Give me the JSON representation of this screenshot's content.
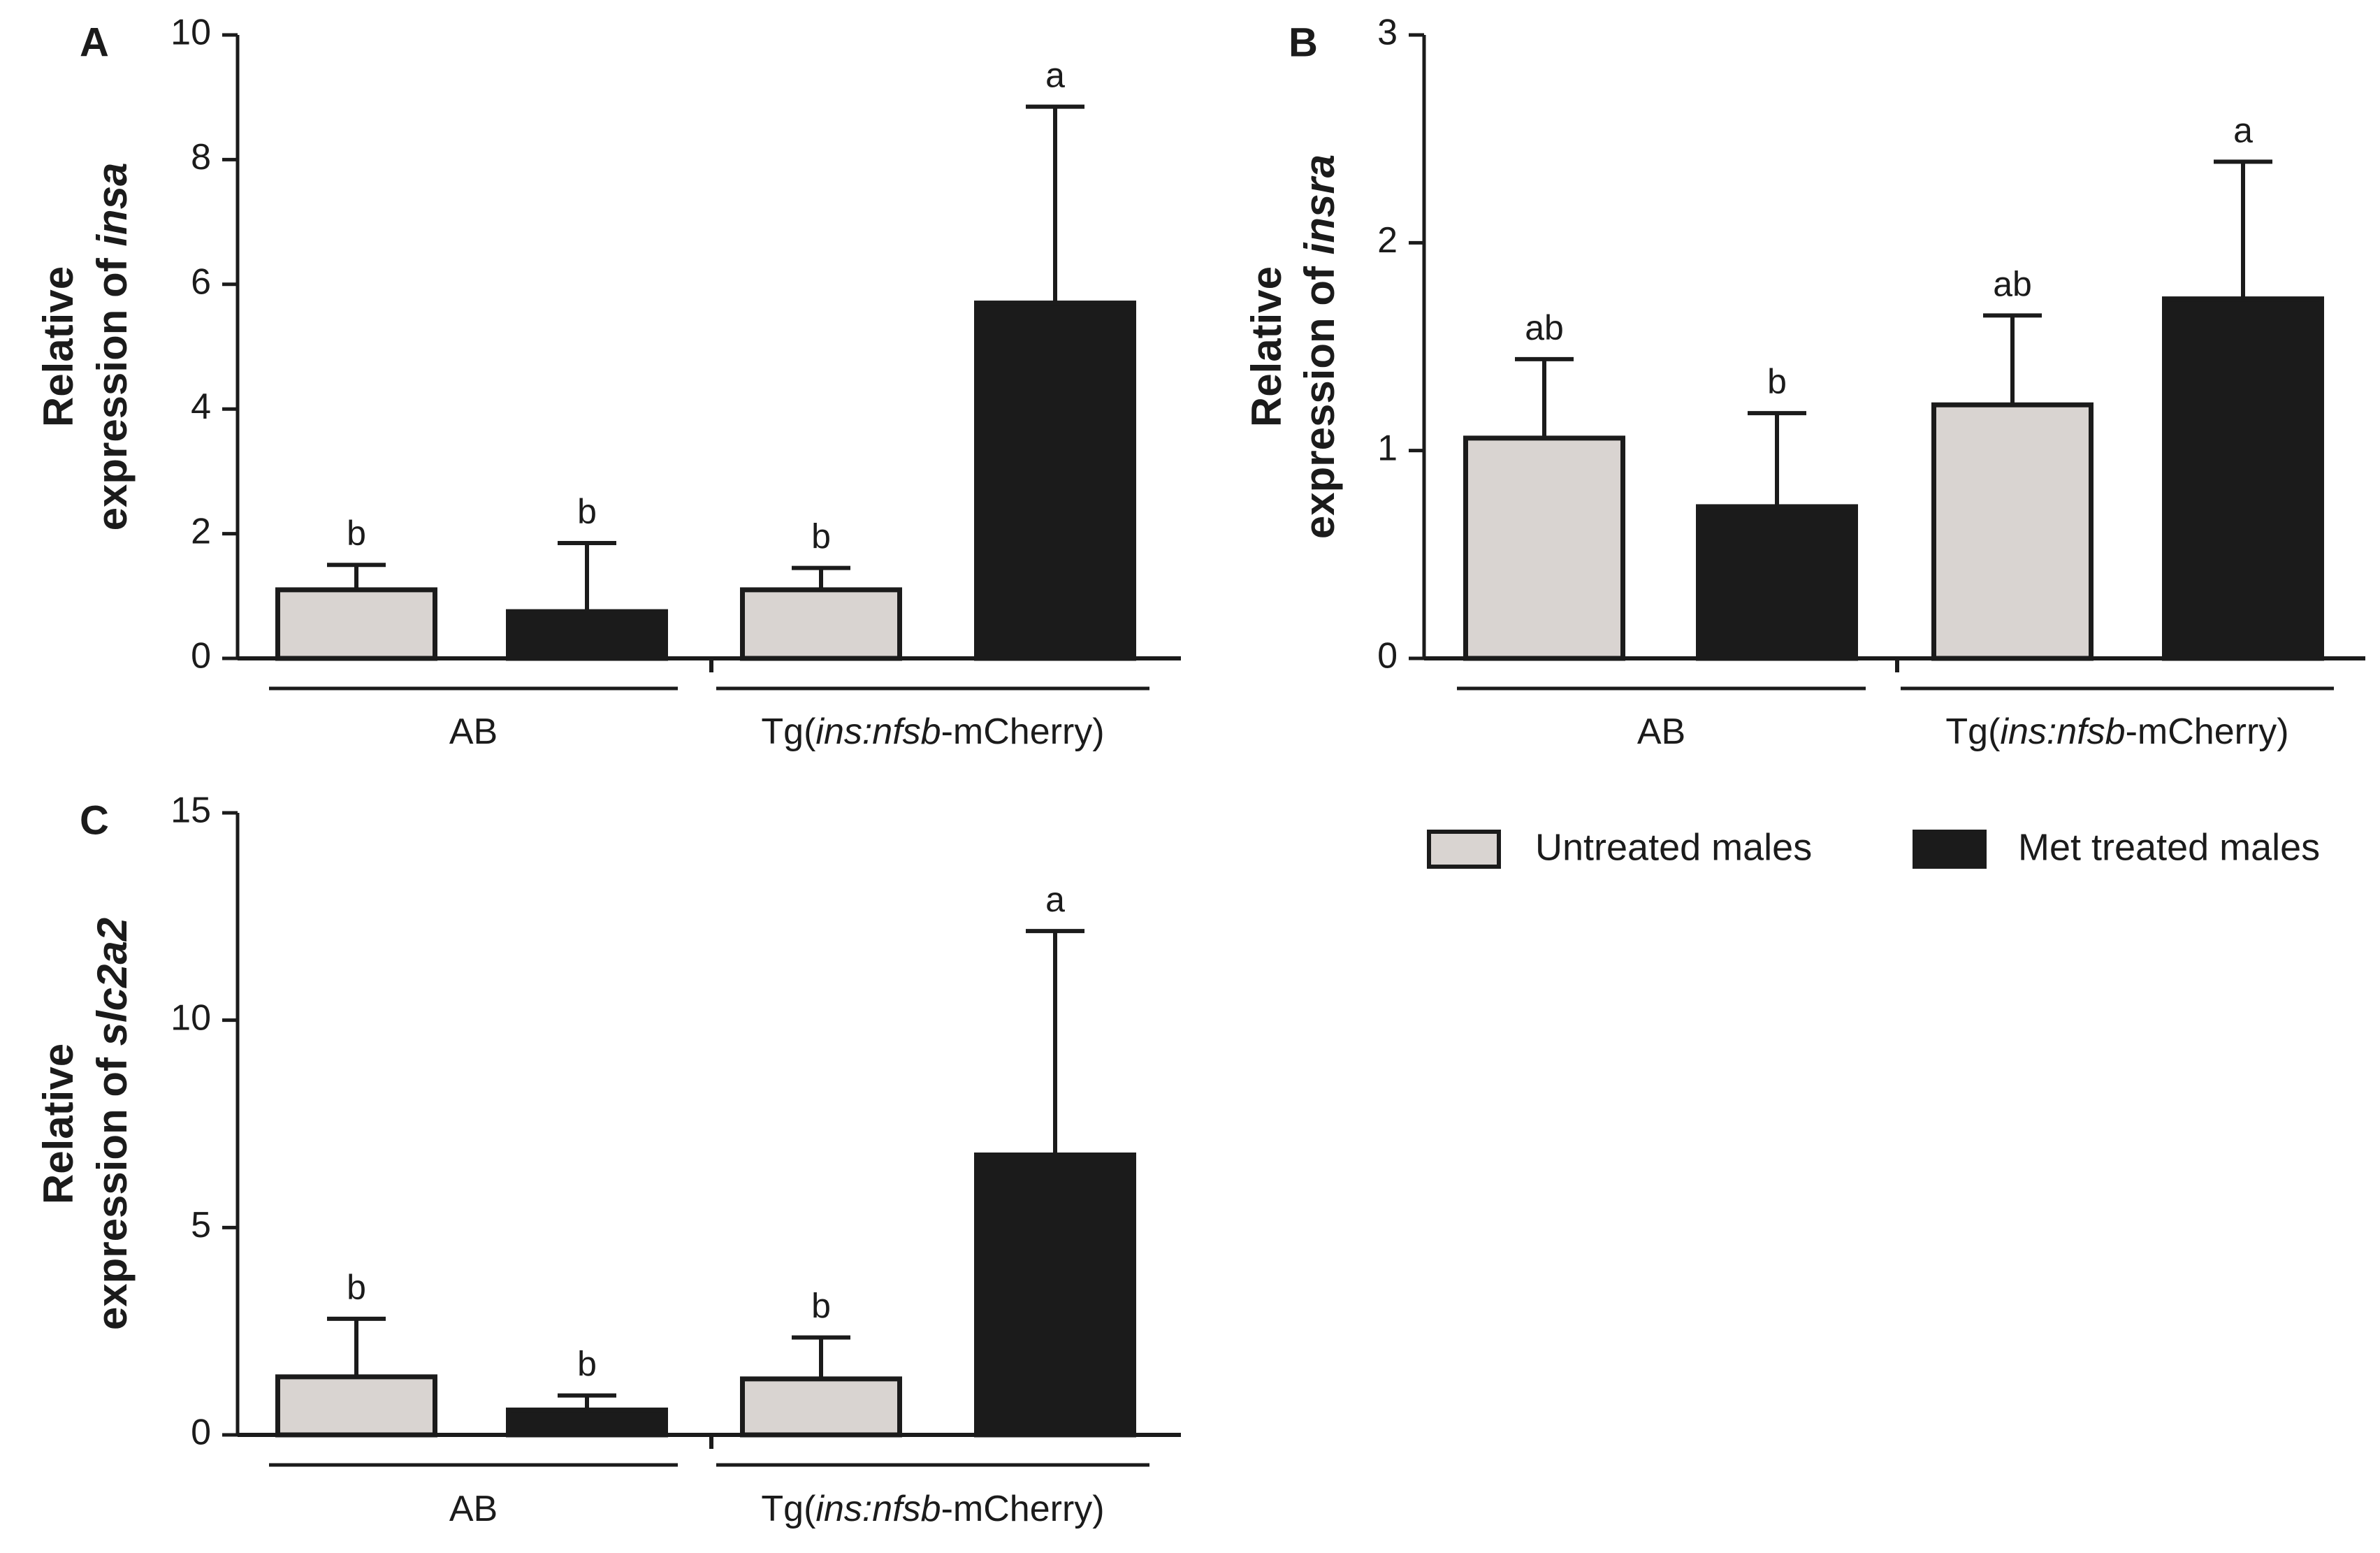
{
  "colors": {
    "untreated": "#d9d4d1",
    "treated": "#1b1b1b",
    "axis": "#1b1b1b"
  },
  "legend": [
    {
      "label": "Untreated males",
      "color": "#d9d4d1"
    },
    {
      "label": "Met treated males",
      "color": "#1b1b1b"
    }
  ],
  "groups": [
    {
      "label": "AB",
      "parts": [
        {
          "text": "AB",
          "italic": false
        }
      ]
    },
    {
      "label": "Tg(ins:nfsb-mCherry)",
      "parts": [
        {
          "text": "Tg(",
          "italic": false
        },
        {
          "text": "ins:nfsb",
          "italic": true
        },
        {
          "text": "-mCherry)",
          "italic": false
        }
      ]
    }
  ],
  "chart_data": [
    {
      "panel": "A",
      "type": "bar",
      "ylabel_line1": "Relative",
      "ylabel_line2": [
        {
          "text": "expression of ",
          "italic": false
        },
        {
          "text": "insa",
          "italic": true
        }
      ],
      "ylim": [
        0,
        10
      ],
      "yticks": [
        0,
        2,
        4,
        6,
        8,
        10
      ],
      "categories": [
        "AB",
        "Tg(ins:nfsb-mCherry)"
      ],
      "series": [
        {
          "name": "Untreated males",
          "values": [
            1.1,
            1.1
          ],
          "err": [
            0.4,
            0.35
          ],
          "sig": [
            "b",
            "b"
          ]
        },
        {
          "name": "Met treated males",
          "values": [
            0.75,
            5.7
          ],
          "err": [
            1.1,
            3.15
          ],
          "sig": [
            "b",
            "a"
          ]
        }
      ]
    },
    {
      "panel": "B",
      "type": "bar",
      "ylabel_line1": "Relative",
      "ylabel_line2": [
        {
          "text": "expression of ",
          "italic": false
        },
        {
          "text": "insra",
          "italic": true
        }
      ],
      "ylim": [
        0,
        3
      ],
      "yticks": [
        0,
        1,
        2,
        3
      ],
      "categories": [
        "AB",
        "Tg(ins:nfsb-mCherry)"
      ],
      "series": [
        {
          "name": "Untreated males",
          "values": [
            1.06,
            1.22
          ],
          "err": [
            0.38,
            0.43
          ],
          "sig": [
            "ab",
            "ab"
          ]
        },
        {
          "name": "Met treated males",
          "values": [
            0.73,
            1.73
          ],
          "err": [
            0.45,
            0.66
          ],
          "sig": [
            "b",
            "a"
          ]
        }
      ]
    },
    {
      "panel": "C",
      "type": "bar",
      "ylabel_line1": "Relative",
      "ylabel_line2": [
        {
          "text": "expression of ",
          "italic": false
        },
        {
          "text": "slc2a2",
          "italic": true
        }
      ],
      "ylim": [
        0,
        15
      ],
      "yticks": [
        0,
        5,
        10,
        15
      ],
      "categories": [
        "AB",
        "Tg(ins:nfsb-mCherry)"
      ],
      "series": [
        {
          "name": "Untreated males",
          "values": [
            1.4,
            1.35
          ],
          "err": [
            1.4,
            1.0
          ],
          "sig": [
            "b",
            "b"
          ]
        },
        {
          "name": "Met treated males",
          "values": [
            0.6,
            6.75
          ],
          "err": [
            0.35,
            5.4
          ],
          "sig": [
            "b",
            "a"
          ]
        }
      ]
    }
  ]
}
